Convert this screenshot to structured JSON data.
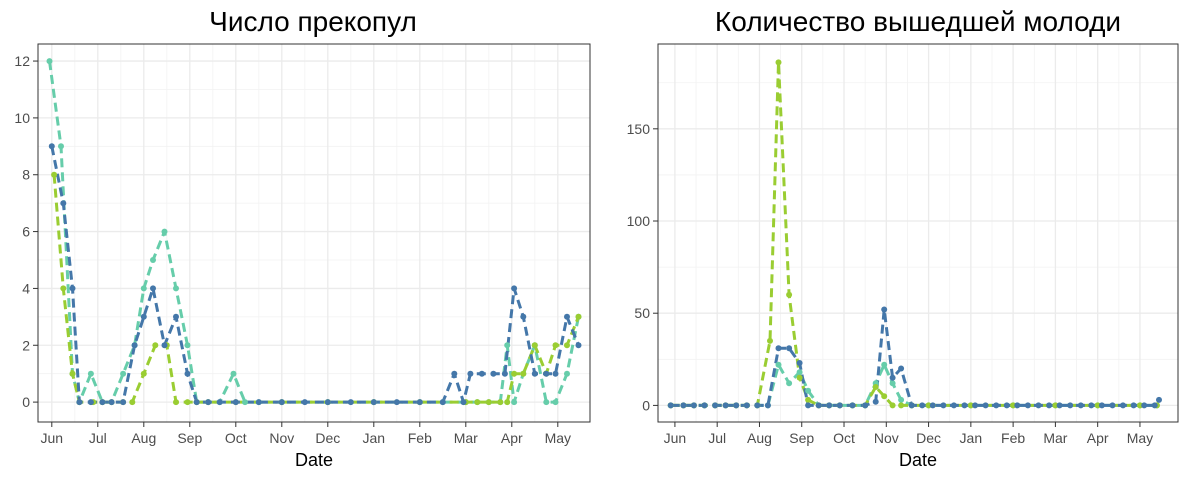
{
  "chart_data": [
    {
      "type": "line",
      "title": "Число прекопул",
      "xlabel": "Date",
      "ylabel": "",
      "x_unit": "months since Jun",
      "xlim": [
        -0.3,
        11.7
      ],
      "ylim": [
        -0.7,
        12.6
      ],
      "grid": true,
      "legend": "none",
      "x_ticks": [
        {
          "label": "Jun",
          "value": 0
        },
        {
          "label": "Jul",
          "value": 1
        },
        {
          "label": "Aug",
          "value": 2
        },
        {
          "label": "Sep",
          "value": 3
        },
        {
          "label": "Oct",
          "value": 4
        },
        {
          "label": "Nov",
          "value": 5
        },
        {
          "label": "Dec",
          "value": 6
        },
        {
          "label": "Jan",
          "value": 7
        },
        {
          "label": "Feb",
          "value": 8
        },
        {
          "label": "Mar",
          "value": 9
        },
        {
          "label": "Apr",
          "value": 10
        },
        {
          "label": "May",
          "value": 11
        }
      ],
      "y_ticks": [
        0,
        2,
        4,
        6,
        8,
        10,
        12
      ],
      "series": [
        {
          "color": "#66cdaa",
          "points": [
            [
              -0.05,
              12
            ],
            [
              0.2,
              9
            ],
            [
              0.45,
              1
            ],
            [
              0.6,
              0
            ],
            [
              0.85,
              1
            ],
            [
              1.1,
              0
            ],
            [
              1.3,
              0
            ],
            [
              1.55,
              1
            ],
            [
              1.8,
              2
            ],
            [
              2.0,
              4
            ],
            [
              2.2,
              5
            ],
            [
              2.45,
              6
            ],
            [
              2.7,
              4
            ],
            [
              2.95,
              2
            ],
            [
              3.15,
              0
            ],
            [
              3.4,
              0
            ],
            [
              3.65,
              0
            ],
            [
              3.95,
              1
            ],
            [
              4.2,
              0
            ],
            [
              4.5,
              0
            ],
            [
              5,
              0
            ],
            [
              6,
              0
            ],
            [
              7,
              0
            ],
            [
              8,
              0
            ],
            [
              8.5,
              0
            ],
            [
              9.0,
              0
            ],
            [
              9.25,
              0
            ],
            [
              9.5,
              0
            ],
            [
              9.75,
              0
            ],
            [
              9.9,
              2
            ],
            [
              10.05,
              0
            ],
            [
              10.25,
              1
            ],
            [
              10.5,
              2
            ],
            [
              10.75,
              0
            ],
            [
              10.95,
              0
            ],
            [
              11.2,
              1
            ],
            [
              11.45,
              3
            ]
          ]
        },
        {
          "color": "#9acd32",
          "points": [
            [
              0.05,
              8
            ],
            [
              0.25,
              4
            ],
            [
              0.45,
              1
            ],
            [
              0.6,
              0
            ],
            [
              0.9,
              0
            ],
            [
              1.1,
              0
            ],
            [
              1.3,
              0
            ],
            [
              1.55,
              0
            ],
            [
              1.75,
              0
            ],
            [
              2.0,
              1
            ],
            [
              2.25,
              2
            ],
            [
              2.5,
              2
            ],
            [
              2.7,
              0
            ],
            [
              2.95,
              0
            ],
            [
              3.15,
              0
            ],
            [
              3.4,
              0
            ],
            [
              4,
              0
            ],
            [
              5,
              0
            ],
            [
              6,
              0
            ],
            [
              7,
              0
            ],
            [
              8,
              0
            ],
            [
              9.0,
              0
            ],
            [
              9.25,
              0
            ],
            [
              9.5,
              0
            ],
            [
              9.75,
              0
            ],
            [
              9.9,
              0
            ],
            [
              10.05,
              1
            ],
            [
              10.25,
              1
            ],
            [
              10.5,
              2
            ],
            [
              10.75,
              1
            ],
            [
              10.95,
              2
            ],
            [
              11.2,
              2
            ],
            [
              11.45,
              3
            ]
          ]
        },
        {
          "color": "#4477a9",
          "points": [
            [
              0,
              9
            ],
            [
              0.25,
              7
            ],
            [
              0.45,
              4
            ],
            [
              0.6,
              0
            ],
            [
              0.85,
              0
            ],
            [
              1.1,
              0
            ],
            [
              1.3,
              0
            ],
            [
              1.55,
              0
            ],
            [
              1.8,
              2
            ],
            [
              2.0,
              3
            ],
            [
              2.2,
              4
            ],
            [
              2.45,
              2
            ],
            [
              2.7,
              3
            ],
            [
              2.95,
              1
            ],
            [
              3.15,
              0
            ],
            [
              3.4,
              0
            ],
            [
              3.65,
              0
            ],
            [
              4,
              0
            ],
            [
              4.5,
              0
            ],
            [
              5,
              0
            ],
            [
              5.5,
              0
            ],
            [
              6,
              0
            ],
            [
              6.5,
              0
            ],
            [
              7,
              0
            ],
            [
              7.5,
              0
            ],
            [
              8,
              0
            ],
            [
              8.5,
              0
            ],
            [
              8.75,
              1
            ],
            [
              8.95,
              0
            ],
            [
              9.1,
              1
            ],
            [
              9.35,
              1
            ],
            [
              9.6,
              1
            ],
            [
              9.85,
              1
            ],
            [
              10.05,
              4
            ],
            [
              10.25,
              3
            ],
            [
              10.5,
              1
            ],
            [
              10.75,
              1
            ],
            [
              10.95,
              1
            ],
            [
              11.2,
              3
            ],
            [
              11.45,
              2
            ]
          ]
        }
      ]
    },
    {
      "type": "line",
      "title": "Количество вышедшей молоди",
      "xlabel": "Date",
      "ylabel": "",
      "x_unit": "months since Jun",
      "xlim": [
        -0.4,
        11.9
      ],
      "ylim": [
        -9,
        196
      ],
      "grid": true,
      "legend": "none",
      "x_ticks": [
        {
          "label": "Jun",
          "value": 0
        },
        {
          "label": "Jul",
          "value": 1
        },
        {
          "label": "Aug",
          "value": 2
        },
        {
          "label": "Sep",
          "value": 3
        },
        {
          "label": "Oct",
          "value": 4
        },
        {
          "label": "Nov",
          "value": 5
        },
        {
          "label": "Dec",
          "value": 6
        },
        {
          "label": "Jan",
          "value": 7
        },
        {
          "label": "Feb",
          "value": 8
        },
        {
          "label": "Mar",
          "value": 9
        },
        {
          "label": "Apr",
          "value": 10
        },
        {
          "label": "May",
          "value": 11
        }
      ],
      "y_ticks": [
        0,
        50,
        100,
        150
      ],
      "series": [
        {
          "color": "#66cdaa",
          "points": [
            [
              -0.1,
              0
            ],
            [
              0.2,
              0
            ],
            [
              0.45,
              0
            ],
            [
              0.7,
              0
            ],
            [
              0.95,
              0
            ],
            [
              1.2,
              0
            ],
            [
              1.45,
              0
            ],
            [
              1.7,
              0
            ],
            [
              1.95,
              0
            ],
            [
              2.2,
              0
            ],
            [
              2.45,
              22
            ],
            [
              2.7,
              12
            ],
            [
              2.95,
              18
            ],
            [
              3.15,
              8
            ],
            [
              3.4,
              0
            ],
            [
              3.65,
              0
            ],
            [
              3.9,
              0
            ],
            [
              4.2,
              0
            ],
            [
              4.5,
              0
            ],
            [
              4.75,
              12
            ],
            [
              4.95,
              22
            ],
            [
              5.15,
              12
            ],
            [
              5.35,
              3
            ],
            [
              5.6,
              0
            ],
            [
              6,
              0
            ],
            [
              7,
              0
            ],
            [
              8,
              0
            ],
            [
              9,
              0
            ],
            [
              10,
              0
            ],
            [
              11,
              0
            ],
            [
              11.4,
              0
            ]
          ]
        },
        {
          "color": "#9acd32",
          "points": [
            [
              -0.1,
              0
            ],
            [
              0.2,
              0
            ],
            [
              0.45,
              0
            ],
            [
              0.7,
              0
            ],
            [
              0.95,
              0
            ],
            [
              1.2,
              0
            ],
            [
              1.45,
              0
            ],
            [
              1.7,
              0
            ],
            [
              1.95,
              0
            ],
            [
              2.25,
              35
            ],
            [
              2.45,
              186
            ],
            [
              2.7,
              60
            ],
            [
              2.95,
              15
            ],
            [
              3.15,
              3
            ],
            [
              3.4,
              0
            ],
            [
              3.65,
              0
            ],
            [
              3.9,
              0
            ],
            [
              4.2,
              0
            ],
            [
              4.5,
              0
            ],
            [
              4.75,
              10
            ],
            [
              4.95,
              5
            ],
            [
              5.15,
              0
            ],
            [
              5.35,
              0
            ],
            [
              5.6,
              0
            ],
            [
              6,
              0
            ],
            [
              7,
              0
            ],
            [
              8,
              0
            ],
            [
              9,
              0
            ],
            [
              10,
              0
            ],
            [
              11,
              0
            ],
            [
              11.4,
              0
            ]
          ]
        },
        {
          "color": "#4477a9",
          "points": [
            [
              -0.1,
              0
            ],
            [
              0.2,
              0
            ],
            [
              0.45,
              0
            ],
            [
              0.7,
              0
            ],
            [
              0.95,
              0
            ],
            [
              1.2,
              0
            ],
            [
              1.45,
              0
            ],
            [
              1.7,
              0
            ],
            [
              1.95,
              0
            ],
            [
              2.2,
              0
            ],
            [
              2.45,
              31
            ],
            [
              2.7,
              31
            ],
            [
              2.95,
              23
            ],
            [
              3.15,
              0
            ],
            [
              3.4,
              0
            ],
            [
              3.65,
              0
            ],
            [
              3.9,
              0
            ],
            [
              4.2,
              0
            ],
            [
              4.5,
              0
            ],
            [
              4.75,
              2
            ],
            [
              4.95,
              52
            ],
            [
              5.15,
              15
            ],
            [
              5.35,
              20
            ],
            [
              5.6,
              0
            ],
            [
              5.85,
              0
            ],
            [
              6.1,
              0
            ],
            [
              6.35,
              0
            ],
            [
              6.6,
              0
            ],
            [
              6.85,
              0
            ],
            [
              7.1,
              0
            ],
            [
              7.35,
              0
            ],
            [
              7.6,
              0
            ],
            [
              7.85,
              0
            ],
            [
              8.1,
              0
            ],
            [
              8.35,
              0
            ],
            [
              8.6,
              0
            ],
            [
              8.85,
              0
            ],
            [
              9.1,
              0
            ],
            [
              9.35,
              0
            ],
            [
              9.6,
              0
            ],
            [
              9.85,
              0
            ],
            [
              10.1,
              0
            ],
            [
              10.35,
              0
            ],
            [
              10.6,
              0
            ],
            [
              10.85,
              0
            ],
            [
              11.1,
              0
            ],
            [
              11.35,
              0
            ],
            [
              11.45,
              3
            ]
          ]
        }
      ]
    }
  ]
}
